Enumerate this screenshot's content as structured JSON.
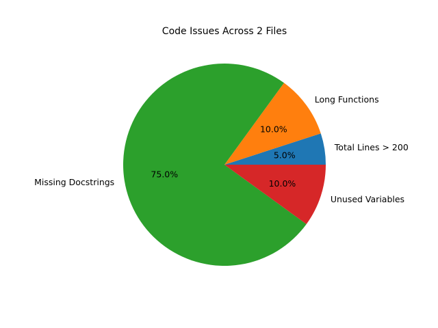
{
  "chart_data": {
    "type": "pie",
    "title": "Code Issues Across 2 Files",
    "start_angle_deg": 0,
    "direction": "counterclockwise",
    "slices": [
      {
        "label": "Total Lines > 200",
        "value": 5.0,
        "pct_label": "5.0%",
        "color": "#1f77b4"
      },
      {
        "label": "Long Functions",
        "value": 10.0,
        "pct_label": "10.0%",
        "color": "#ff7f0e"
      },
      {
        "label": "Missing Docstrings",
        "value": 75.0,
        "pct_label": "75.0%",
        "color": "#2ca02c"
      },
      {
        "label": "Unused Variables",
        "value": 10.0,
        "pct_label": "10.0%",
        "color": "#d62728"
      }
    ]
  }
}
